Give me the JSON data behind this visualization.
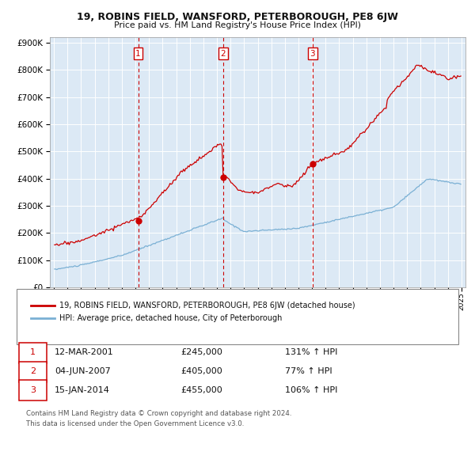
{
  "title1": "19, ROBINS FIELD, WANSFORD, PETERBOROUGH, PE8 6JW",
  "title2": "Price paid vs. HM Land Registry's House Price Index (HPI)",
  "legend_red": "19, ROBINS FIELD, WANSFORD, PETERBOROUGH, PE8 6JW (detached house)",
  "legend_blue": "HPI: Average price, detached house, City of Peterborough",
  "sale1_date": "12-MAR-2001",
  "sale1_price": 245000,
  "sale1_hpi": "131% ↑ HPI",
  "sale2_date": "04-JUN-2007",
  "sale2_price": 405000,
  "sale2_hpi": "77% ↑ HPI",
  "sale3_date": "15-JAN-2014",
  "sale3_price": 455000,
  "sale3_hpi": "106% ↑ HPI",
  "footer1": "Contains HM Land Registry data © Crown copyright and database right 2024.",
  "footer2": "This data is licensed under the Open Government Licence v3.0.",
  "bg_color": "#dce9f5",
  "red_color": "#cc0000",
  "blue_color": "#7ab0d4",
  "ylim_max": 900000,
  "sale1_x": 2001.2,
  "sale2_x": 2007.45,
  "sale3_x": 2014.04
}
